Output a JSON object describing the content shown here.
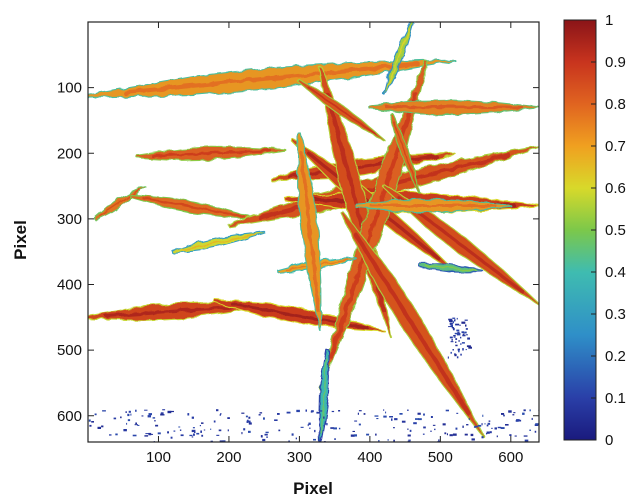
{
  "chart_data": {
    "type": "heatmap",
    "xlabel": "Pixel",
    "ylabel": "Pixel",
    "xlim": [
      0,
      640
    ],
    "ylim": [
      640,
      0
    ],
    "xticks": [
      100,
      200,
      300,
      400,
      500,
      600
    ],
    "yticks": [
      100,
      200,
      300,
      400,
      500,
      600
    ],
    "colorbar": {
      "min": 0,
      "max": 1,
      "ticks": [
        0,
        0.1,
        0.2,
        0.3,
        0.4,
        0.5,
        0.6,
        0.7,
        0.8,
        0.9,
        1
      ],
      "tick_labels": [
        "0",
        "0.1",
        "0.2",
        "0.3",
        "0.4",
        "0.5",
        "0.6",
        "0.7",
        "0.8",
        "0.9",
        "1"
      ],
      "colormap": "jet",
      "placement": "right"
    },
    "background": "#ffffff",
    "strands": [
      {
        "from": [
          0,
          113
        ],
        "to": [
          520,
          58
        ],
        "value": 0.72
      },
      {
        "from": [
          70,
          205
        ],
        "to": [
          280,
          195
        ],
        "value": 0.82
      },
      {
        "from": [
          10,
          300
        ],
        "to": [
          80,
          250
        ],
        "value": 0.78
      },
      {
        "from": [
          0,
          450
        ],
        "to": [
          260,
          430
        ],
        "value": 0.88
      },
      {
        "from": [
          180,
          425
        ],
        "to": [
          420,
          470
        ],
        "value": 0.9
      },
      {
        "from": [
          60,
          265
        ],
        "to": [
          240,
          300
        ],
        "value": 0.8
      },
      {
        "from": [
          200,
          310
        ],
        "to": [
          640,
          190
        ],
        "value": 0.85
      },
      {
        "from": [
          280,
          270
        ],
        "to": [
          640,
          280
        ],
        "value": 0.9
      },
      {
        "from": [
          260,
          240
        ],
        "to": [
          520,
          200
        ],
        "value": 0.88
      },
      {
        "from": [
          290,
          180
        ],
        "to": [
          520,
          380
        ],
        "value": 0.88
      },
      {
        "from": [
          330,
          70
        ],
        "to": [
          430,
          480
        ],
        "value": 0.86
      },
      {
        "from": [
          480,
          60
        ],
        "to": [
          330,
          560
        ],
        "value": 0.82
      },
      {
        "from": [
          360,
          290
        ],
        "to": [
          560,
          630
        ],
        "value": 0.85
      },
      {
        "from": [
          400,
          130
        ],
        "to": [
          640,
          130
        ],
        "value": 0.76
      },
      {
        "from": [
          300,
          90
        ],
        "to": [
          420,
          180
        ],
        "value": 0.84
      },
      {
        "from": [
          420,
          250
        ],
        "to": [
          640,
          430
        ],
        "value": 0.86
      },
      {
        "from": [
          380,
          280
        ],
        "to": [
          600,
          280
        ],
        "value": 0.72
      },
      {
        "from": [
          270,
          380
        ],
        "to": [
          380,
          360
        ],
        "value": 0.7
      },
      {
        "from": [
          300,
          170
        ],
        "to": [
          330,
          470
        ],
        "value": 0.72
      },
      {
        "from": [
          120,
          350
        ],
        "to": [
          250,
          320
        ],
        "value": 0.6
      },
      {
        "from": [
          430,
          140
        ],
        "to": [
          470,
          260
        ],
        "value": 0.8
      },
      {
        "from": [
          460,
          0
        ],
        "to": [
          420,
          110
        ],
        "value": 0.55
      },
      {
        "from": [
          340,
          500
        ],
        "to": [
          330,
          640
        ],
        "value": 0.4
      },
      {
        "from": [
          470,
          370
        ],
        "to": [
          560,
          380
        ],
        "value": 0.45
      }
    ],
    "noise_regions": [
      {
        "x": [
          0,
          640
        ],
        "y": [
          590,
          640
        ],
        "value": 0.05
      },
      {
        "x": [
          510,
          540
        ],
        "y": [
          450,
          510
        ],
        "value": 0.04
      }
    ]
  }
}
